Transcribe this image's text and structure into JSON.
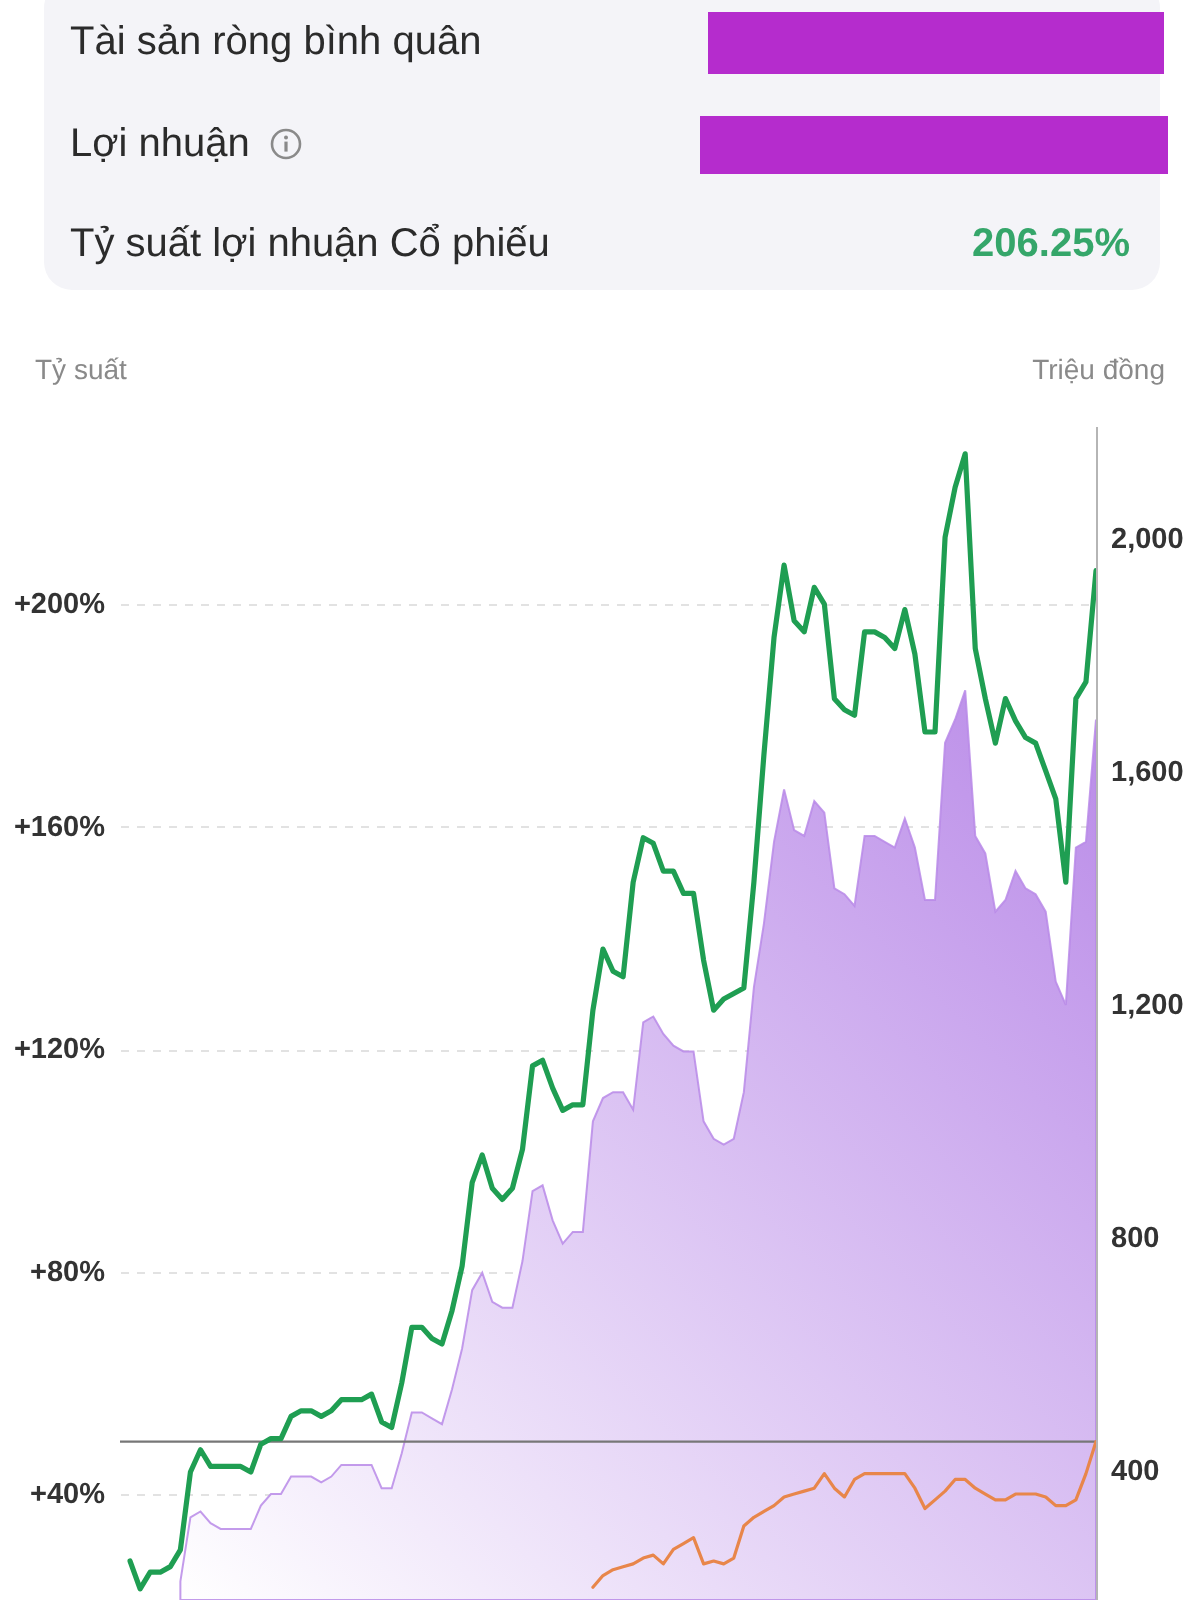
{
  "chart_data": [
    {
      "type": "other",
      "annotations": [
        "Tài sản ròng bình quân",
        "Lợi nhuận",
        "Tỷ suất lợi nhuận Cổ phiếu",
        "206.25%"
      ]
    },
    {
      "type": "line",
      "ylabel": "Tỷ suất",
      "y2label": "Triệu đồng",
      "categories": [
        null,
        null,
        null,
        null,
        null,
        null,
        null,
        null,
        null,
        null,
        null,
        null,
        null,
        null,
        null,
        null,
        null,
        null,
        null,
        null,
        null,
        null,
        null,
        null,
        null,
        null,
        null,
        null,
        null,
        null,
        null,
        null,
        null,
        null,
        null,
        null,
        null,
        null,
        null,
        null,
        null,
        null,
        null,
        null,
        null,
        null,
        null,
        null,
        null,
        null,
        null,
        null,
        null,
        null,
        null,
        null,
        null,
        null,
        null,
        null,
        null,
        null,
        null,
        null,
        null,
        null,
        null,
        null,
        null,
        null,
        null,
        null,
        null,
        null,
        null,
        null,
        null,
        null,
        null,
        null,
        null,
        null,
        null,
        null,
        null,
        null,
        null,
        null,
        null,
        null,
        null,
        null,
        null,
        null,
        null,
        null,
        null
      ],
      "series": [
        {
          "type": "area",
          "axis": "y2",
          "color": "#b98ae8",
          "values": [
            null,
            null,
            null,
            null,
            null,
            210,
            320,
            330,
            310,
            300,
            300,
            300,
            300,
            340,
            360,
            360,
            390,
            390,
            390,
            380,
            390,
            410,
            410,
            410,
            410,
            370,
            370,
            430,
            500,
            500,
            490,
            480,
            540,
            610,
            710,
            740,
            690,
            680,
            680,
            760,
            880,
            890,
            830,
            790,
            810,
            810,
            1000,
            1040,
            1050,
            1050,
            1020,
            1170,
            1180,
            1150,
            1130,
            1120,
            1120,
            1000,
            970,
            960,
            970,
            1050,
            1230,
            1340,
            1480,
            1570,
            1500,
            1490,
            1550,
            1530,
            1400,
            1390,
            1370,
            1490,
            1490,
            1480,
            1470,
            1520,
            1470,
            1380,
            1380,
            1650,
            1690,
            1740,
            1490,
            1460,
            1360,
            1380,
            1430,
            1400,
            1390,
            1360,
            1240,
            1200,
            1470,
            1480,
            1690
          ]
        },
        {
          "type": "line",
          "axis": "y2",
          "color": "#e8864a",
          "values": [
            null,
            null,
            null,
            null,
            null,
            null,
            null,
            null,
            null,
            null,
            null,
            null,
            null,
            null,
            null,
            null,
            null,
            null,
            null,
            null,
            null,
            null,
            null,
            null,
            null,
            null,
            null,
            null,
            null,
            null,
            null,
            null,
            null,
            null,
            null,
            null,
            null,
            null,
            null,
            null,
            null,
            null,
            null,
            null,
            null,
            null,
            200,
            220,
            230,
            235,
            240,
            250,
            255,
            240,
            265,
            275,
            285,
            240,
            245,
            240,
            250,
            305,
            320,
            330,
            340,
            355,
            360,
            365,
            370,
            395,
            370,
            355,
            385,
            395,
            395,
            395,
            395,
            395,
            370,
            335,
            350,
            365,
            385,
            385,
            370,
            360,
            350,
            350,
            360,
            360,
            360,
            355,
            340,
            340,
            350,
            395,
            450
          ]
        },
        {
          "type": "line",
          "color": "#1f9e52",
          "values": [
            28,
            23,
            26,
            26,
            27,
            30,
            44,
            48,
            45,
            45,
            45,
            45,
            44,
            49,
            50,
            50,
            54,
            55,
            55,
            54,
            55,
            57,
            57,
            57,
            58,
            53,
            52,
            60,
            70,
            70,
            68,
            67,
            73,
            81,
            96,
            101,
            95,
            93,
            95,
            102,
            117,
            118,
            113,
            109,
            110,
            110,
            127,
            138,
            134,
            133,
            150,
            158,
            157,
            152,
            152,
            148,
            148,
            136,
            127,
            129,
            130,
            131,
            150,
            173,
            194,
            207,
            197,
            195,
            203,
            200,
            183,
            181,
            180,
            195,
            195,
            194,
            192,
            199,
            191,
            177,
            177,
            212,
            221,
            227,
            192,
            183,
            175,
            183,
            179,
            176,
            175,
            170,
            165,
            150,
            183,
            186,
            206
          ]
        }
      ],
      "ylim": [
        21,
        232
      ],
      "yticks": [
        {
          "value": 40,
          "label": "+40%"
        },
        {
          "value": 80,
          "label": "+80%"
        },
        {
          "value": 120,
          "label": "+120%"
        },
        {
          "value": 160,
          "label": "+160%"
        },
        {
          "value": 200,
          "label": "+200%"
        }
      ],
      "y2lim": [
        178,
        2194
      ],
      "y2ticks": [
        400,
        800,
        {
          "value": 1200,
          "label": "1,200"
        },
        {
          "value": 1600,
          "label": "1,600"
        },
        {
          "value": 2000,
          "label": "2,000"
        }
      ],
      "grid": "y",
      "ref_lines": [
        {
          "axis": "y2",
          "value": 450,
          "color": "#777777"
        }
      ]
    }
  ]
}
